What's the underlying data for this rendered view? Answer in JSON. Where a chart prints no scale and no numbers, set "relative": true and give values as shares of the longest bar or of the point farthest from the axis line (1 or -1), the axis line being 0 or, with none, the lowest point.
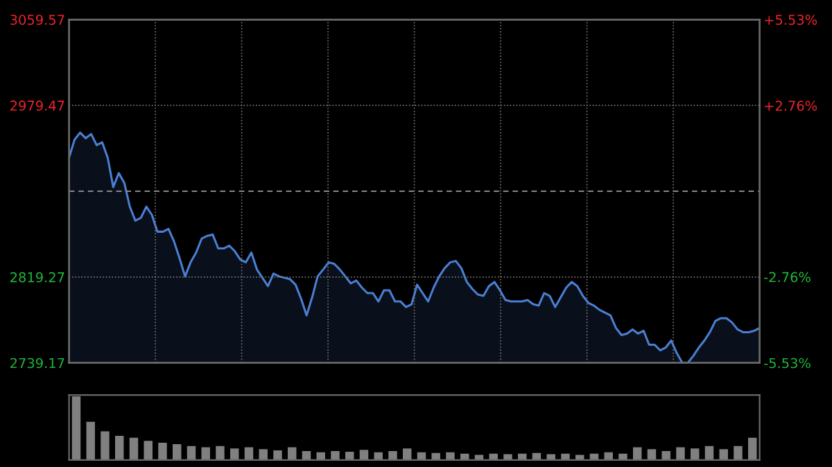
{
  "chart_data": [
    {
      "type": "area",
      "color": "#4a7fd4",
      "categories": [
        null,
        null,
        null,
        null,
        null,
        null,
        null,
        null,
        null,
        null,
        null,
        null,
        null,
        null,
        null,
        null,
        null,
        null,
        null,
        null,
        null,
        null,
        null,
        null,
        null,
        null,
        null,
        null,
        null,
        null,
        null,
        null,
        null,
        null,
        null,
        null,
        null,
        null,
        null,
        null,
        null,
        null,
        null,
        null,
        null,
        null,
        null,
        null,
        null,
        null,
        null,
        null,
        null,
        null,
        null,
        null,
        null,
        null,
        null,
        null,
        null,
        null,
        null,
        null,
        null,
        null,
        null,
        null,
        null,
        null,
        null,
        null,
        null,
        null,
        null,
        null,
        null,
        null,
        null,
        null,
        null,
        null,
        null,
        null,
        null,
        null,
        null,
        null,
        null,
        null,
        null,
        null,
        null,
        null,
        null,
        null,
        null,
        null,
        null,
        null,
        null,
        null,
        null,
        null,
        null,
        null,
        null,
        null,
        null,
        null,
        null,
        null,
        null,
        null,
        null,
        null,
        null,
        null,
        null,
        null,
        null,
        null,
        null,
        null,
        null,
        null
      ],
      "values": [
        2930.6,
        2947.6,
        2954.1,
        2948.9,
        2952.8,
        2942.4,
        2945.0,
        2930.6,
        2903.3,
        2916.3,
        2907.2,
        2885.0,
        2872.0,
        2874.6,
        2885.0,
        2877.2,
        2861.6,
        2861.6,
        2864.2,
        2852.5,
        2836.9,
        2819.9,
        2833.0,
        2842.1,
        2855.1,
        2857.7,
        2859.0,
        2846.0,
        2846.0,
        2848.6,
        2843.4,
        2835.6,
        2833.0,
        2842.1,
        2826.4,
        2818.6,
        2810.8,
        2822.5,
        2819.9,
        2818.6,
        2817.3,
        2812.1,
        2799.1,
        2783.5,
        2800.4,
        2819.9,
        2826.4,
        2833.0,
        2831.6,
        2826.4,
        2819.9,
        2813.4,
        2816.0,
        2809.5,
        2804.3,
        2804.3,
        2796.5,
        2806.9,
        2806.9,
        2796.5,
        2796.5,
        2791.3,
        2793.9,
        2812.1,
        2804.3,
        2796.5,
        2809.5,
        2819.9,
        2827.7,
        2833.0,
        2834.3,
        2827.7,
        2814.7,
        2808.2,
        2803.0,
        2801.7,
        2810.8,
        2814.7,
        2806.9,
        2797.8,
        2796.5,
        2796.5,
        2796.5,
        2797.8,
        2793.9,
        2792.6,
        2804.3,
        2801.7,
        2791.3,
        2800.4,
        2809.5,
        2814.7,
        2810.8,
        2801.7,
        2795.2,
        2792.6,
        2788.7,
        2786.1,
        2783.5,
        2771.7,
        2765.2,
        2766.5,
        2770.4,
        2766.5,
        2769.1,
        2756.1,
        2756.1,
        2750.9,
        2753.5,
        2760.0,
        2748.3,
        2739.3,
        2739.2,
        2745.7,
        2753.5,
        2760.0,
        2767.8,
        2778.3,
        2780.9,
        2780.9,
        2776.9,
        2770.4,
        2767.8,
        2767.8,
        2769.1,
        2771.7
      ],
      "ylim": [
        2739.17,
        3059.57
      ],
      "yticks": [
        2739.17,
        2819.27,
        2979.47,
        3059.57
      ],
      "y2lim": [
        -5.53,
        5.53
      ],
      "y2ticks": [
        {
          "value": -5.53,
          "label": "-5.53%"
        },
        {
          "value": -2.76,
          "label": "-2.76%"
        },
        {
          "value": 2.76,
          "label": "+2.76%"
        },
        {
          "value": 5.53,
          "label": "+5.53%"
        }
      ],
      "ref_lines": [
        {
          "axis": "y",
          "value": 2899.37,
          "color": "#888888",
          "line_style": "dashed"
        }
      ],
      "grid": true
    },
    {
      "type": "bar",
      "color": "#808080",
      "relative": true,
      "categories": [
        null,
        null,
        null,
        null,
        null,
        null,
        null,
        null,
        null,
        null,
        null,
        null,
        null,
        null,
        null,
        null,
        null,
        null,
        null,
        null,
        null,
        null,
        null,
        null,
        null,
        null,
        null,
        null,
        null,
        null,
        null,
        null,
        null,
        null,
        null,
        null,
        null,
        null,
        null,
        null,
        null,
        null,
        null,
        null,
        null,
        null,
        null,
        null
      ],
      "values": [
        1.0,
        0.6,
        0.45,
        0.38,
        0.35,
        0.3,
        0.27,
        0.25,
        0.22,
        0.2,
        0.22,
        0.18,
        0.2,
        0.17,
        0.15,
        0.2,
        0.14,
        0.12,
        0.14,
        0.13,
        0.16,
        0.12,
        0.14,
        0.18,
        0.12,
        0.11,
        0.12,
        0.1,
        0.08,
        0.1,
        0.09,
        0.1,
        0.11,
        0.09,
        0.1,
        0.08,
        0.1,
        0.12,
        0.1,
        0.2,
        0.17,
        0.14,
        0.2,
        0.18,
        0.22,
        0.17,
        0.22,
        0.35
      ]
    }
  ]
}
